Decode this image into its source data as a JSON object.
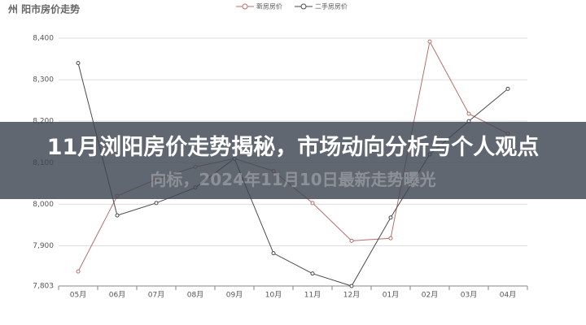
{
  "chart_data": {
    "type": "line",
    "title": "州  阳市房价走势",
    "categories": [
      "05月",
      "06月",
      "07月",
      "08月",
      "09月",
      "10月",
      "11月",
      "12月",
      "01月",
      "02月",
      "03月",
      "04月"
    ],
    "series": [
      {
        "name": "新房房价",
        "color": "#b5706b",
        "values": [
          7838,
          8020,
          8060,
          8090,
          8110,
          8080,
          8003,
          7912,
          7918,
          8392,
          8218,
          8170
        ]
      },
      {
        "name": "二手房房价",
        "color": "#4a4a4a",
        "values": [
          8340,
          7973,
          8003,
          8040,
          8110,
          7882,
          7833,
          7803,
          7968,
          8120,
          8200,
          8278
        ]
      }
    ],
    "ylim": [
      7803,
      8400
    ],
    "yticks": [
      {
        "value": 7803,
        "label": "7,803"
      },
      {
        "value": 7900,
        "label": "7,900"
      },
      {
        "value": 8000,
        "label": "8,000"
      },
      {
        "value": 8100,
        "label": "8,100"
      },
      {
        "value": 8200,
        "label": "8,200"
      },
      {
        "value": 8300,
        "label": "8,300"
      },
      {
        "value": 8400,
        "label": "8,400"
      }
    ],
    "grid": true
  },
  "banner": {
    "title": "11月浏阳房价走势揭秘，市场动向分析与个人观点",
    "subtitle": "向标，2024年11月10日最新走势曝光"
  }
}
